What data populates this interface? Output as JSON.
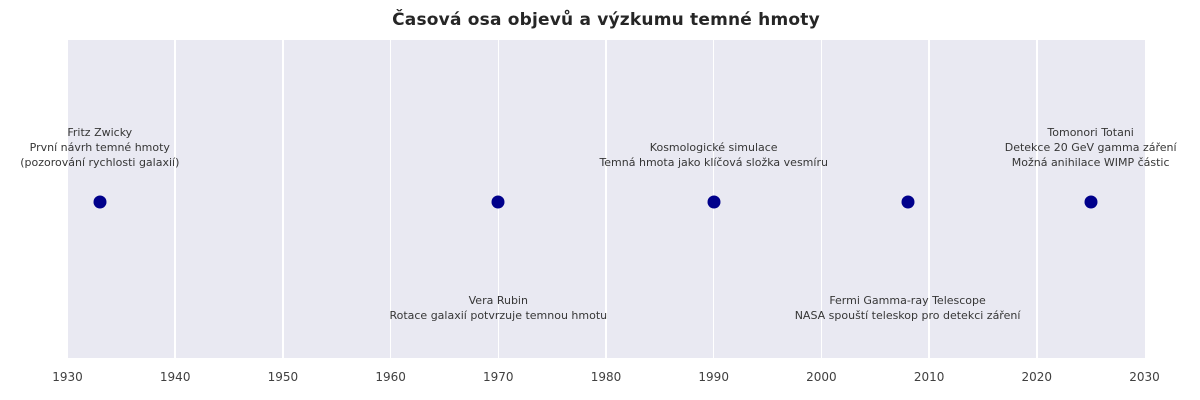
{
  "chart_data": {
    "type": "scatter",
    "title": "Časová osa objevů a výzkumu temné hmoty",
    "xlabel": "",
    "ylabel": "",
    "xlim": [
      1930,
      2030
    ],
    "x_ticks": [
      1930,
      1940,
      1950,
      1960,
      1970,
      1980,
      1990,
      2000,
      2010,
      2020,
      2030
    ],
    "grid": "vertical-only",
    "legend": null,
    "events": [
      {
        "year": 1933,
        "label_position": "above",
        "lines": [
          "Fritz Zwicky",
          "První návrh temné hmoty",
          "(pozorování rychlosti galaxií)"
        ]
      },
      {
        "year": 1970,
        "label_position": "below",
        "lines": [
          "Vera Rubin",
          "Rotace galaxií potvrzuje temnou hmotu"
        ]
      },
      {
        "year": 1990,
        "label_position": "above",
        "lines": [
          "Kosmologické simulace",
          "Temná hmota jako klíčová složka vesmíru"
        ]
      },
      {
        "year": 2008,
        "label_position": "below",
        "lines": [
          "Fermi Gamma-ray Telescope",
          "NASA spouští teleskop pro detekci záření"
        ]
      },
      {
        "year": 2025,
        "label_position": "above",
        "lines": [
          "Tomonori Totani",
          "Detekce 20 GeV gamma záření",
          "Možná anihilace WIMP částic"
        ]
      }
    ],
    "colors": {
      "figure_bg": "#FFFFFF",
      "plot_bg": "#E9E9F2",
      "gridline": "#FFFFFF",
      "point": "#00008B",
      "title_text": "#262626",
      "annotation_text": "#363636",
      "tick_text": "#404040"
    }
  }
}
